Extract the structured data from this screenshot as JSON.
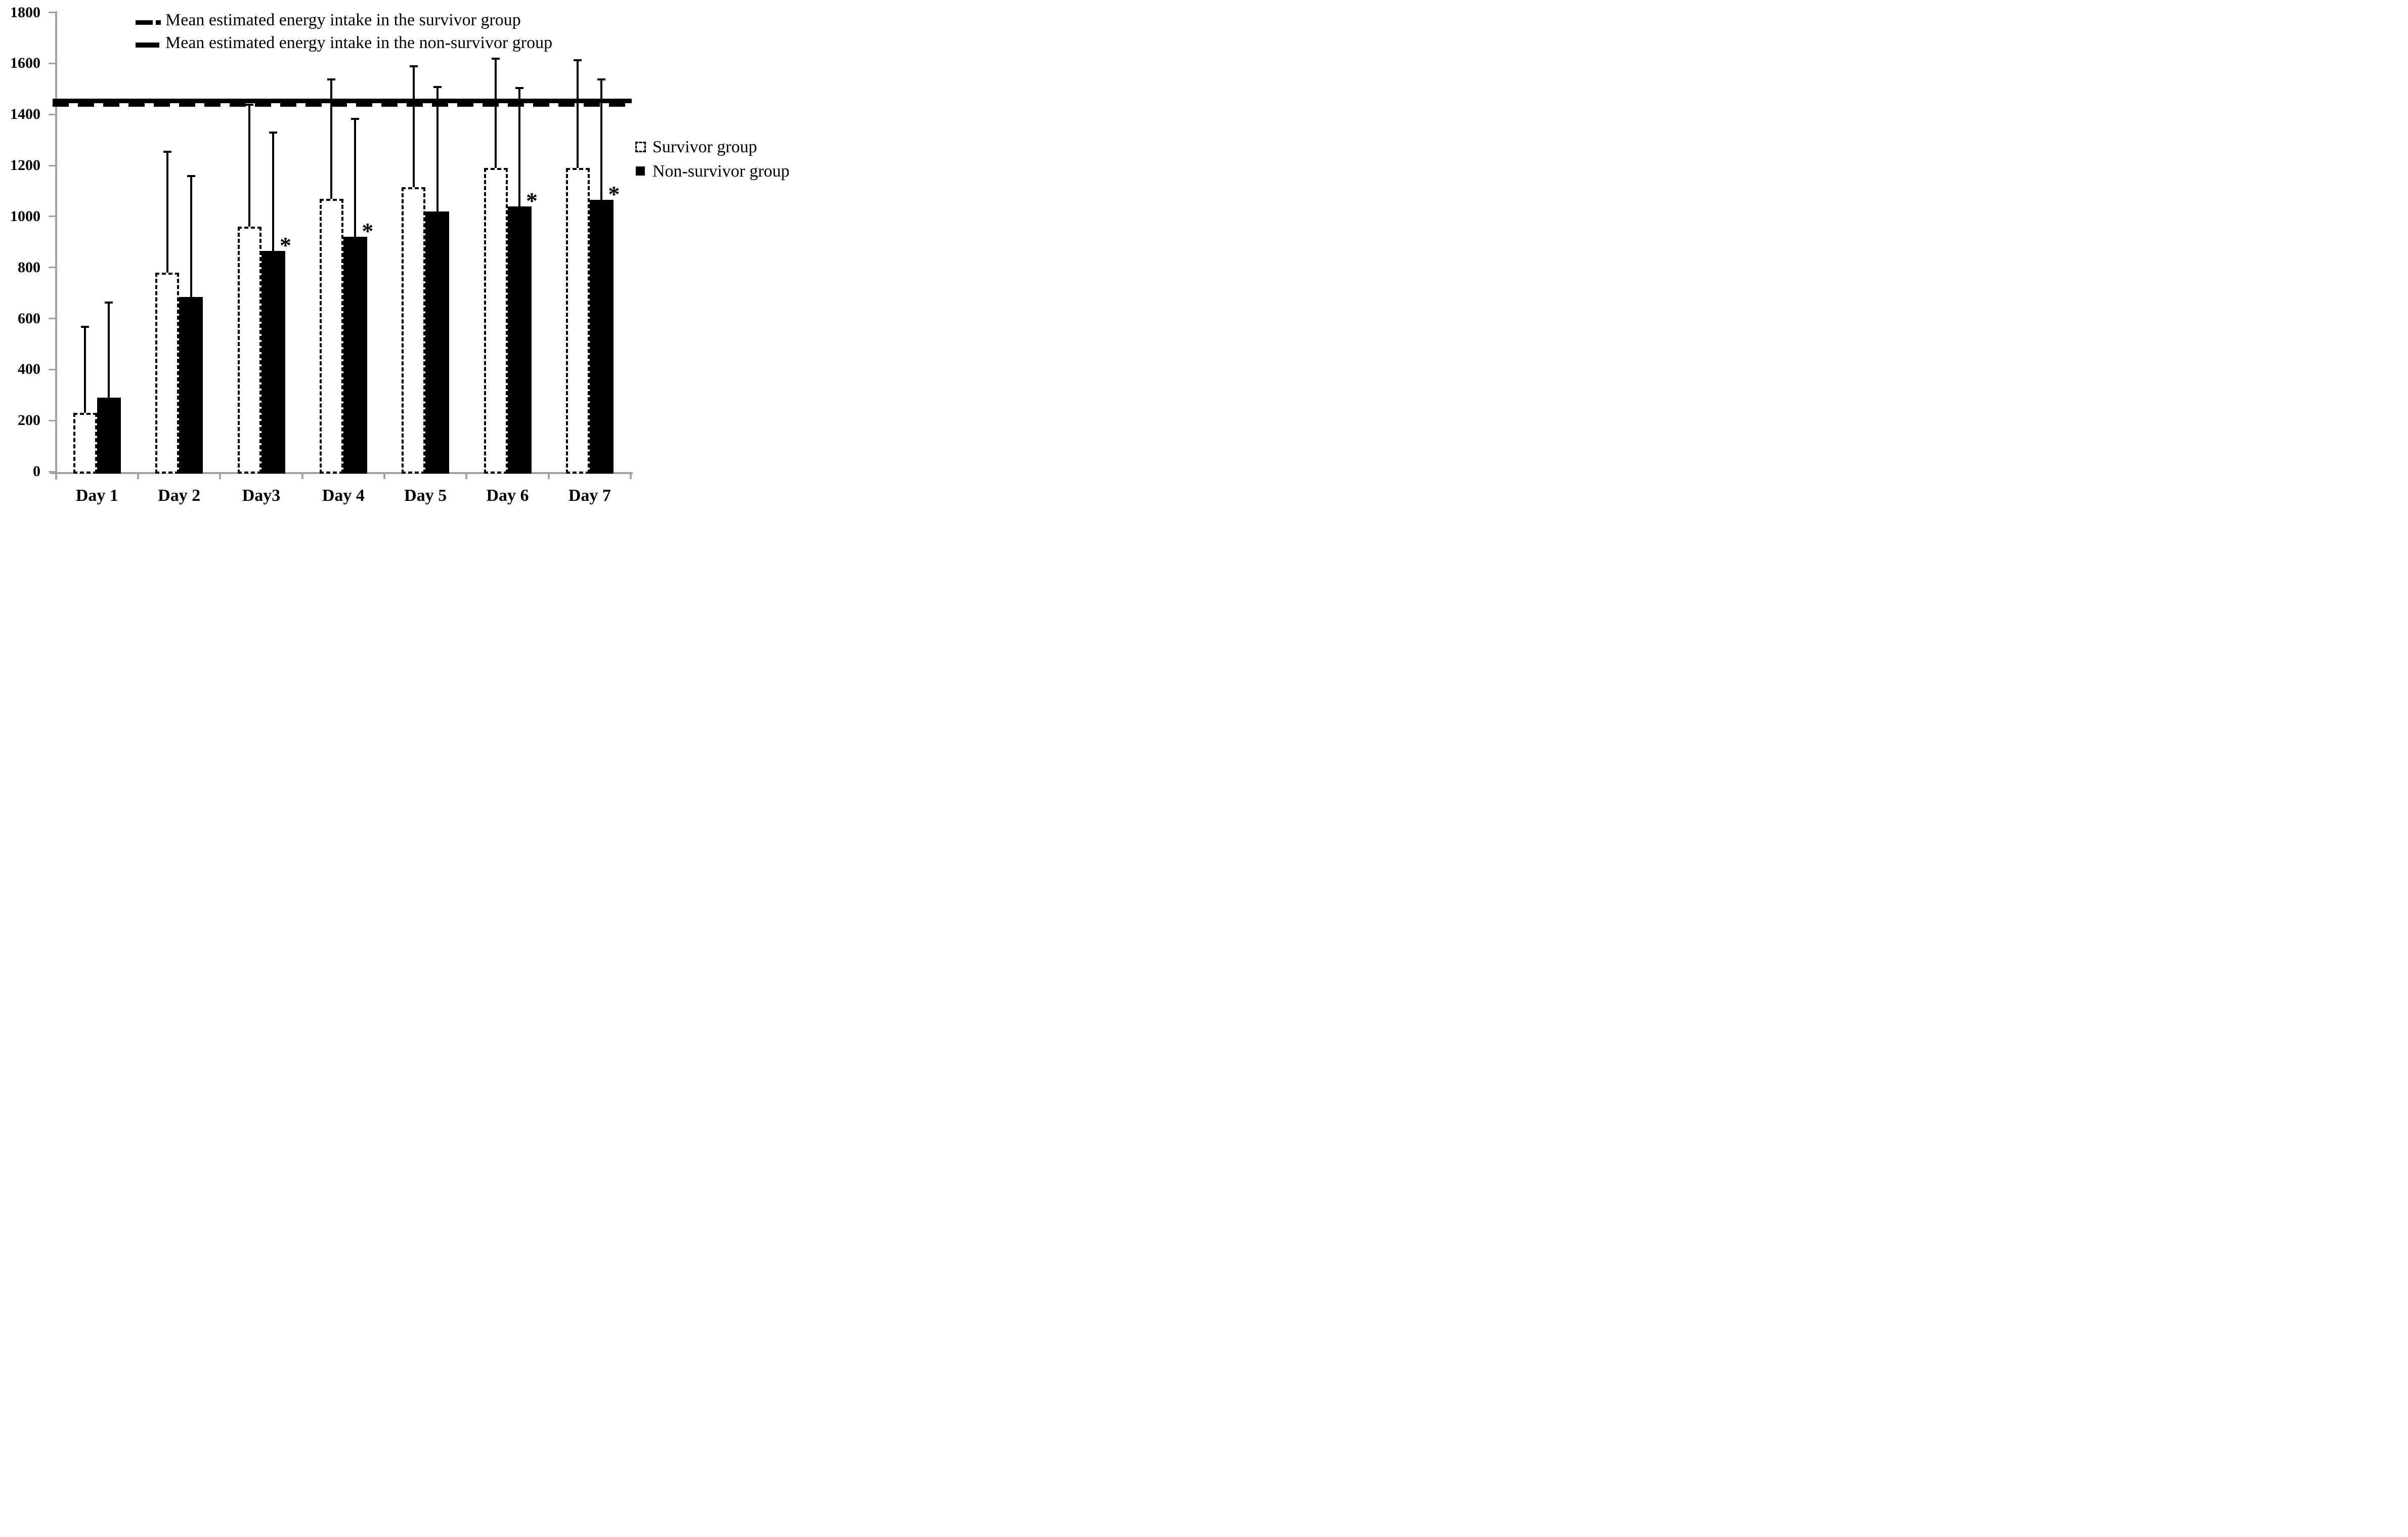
{
  "top_legend": {
    "items": [
      {
        "symbol": "thick-dashed-line",
        "label": "Mean estimated energy intake in the survivor group"
      },
      {
        "symbol": "thick-solid-line",
        "label": "Mean estimated energy intake in the non-survivor group"
      }
    ]
  },
  "side_legend": {
    "items": [
      {
        "symbol": "dashed-outline-box",
        "label": "Survivor group"
      },
      {
        "symbol": "solid-black-box",
        "label": "Non-survivor group"
      }
    ]
  },
  "chart_data": {
    "type": "bar",
    "title": "",
    "xlabel": "",
    "ylabel": "",
    "categories": [
      "Day 1",
      "Day 2",
      "Day3",
      "Day 4",
      "Day 5",
      "Day 6",
      "Day 7"
    ],
    "y_ticks": [
      0,
      200,
      400,
      600,
      800,
      1000,
      1200,
      1400,
      1600,
      1800
    ],
    "ylim": [
      0,
      1800
    ],
    "grid": false,
    "legend_position": "right",
    "series": [
      {
        "name": "Survivor group",
        "style": "white-fill-dashed-outline",
        "values": [
          230,
          780,
          960,
          1070,
          1115,
          1190,
          1190
        ],
        "error_top": [
          570,
          1255,
          1440,
          1540,
          1590,
          1620,
          1615
        ],
        "significance_asterisk": [
          false,
          false,
          false,
          false,
          false,
          false,
          false
        ]
      },
      {
        "name": "Non-survivor group",
        "style": "solid-black-fill",
        "values": [
          290,
          685,
          865,
          920,
          1020,
          1040,
          1065
        ],
        "error_top": [
          665,
          1160,
          1330,
          1385,
          1510,
          1505,
          1540
        ],
        "significance_asterisk": [
          false,
          false,
          true,
          true,
          false,
          true,
          true
        ]
      }
    ],
    "reference_lines": [
      {
        "label": "Mean estimated energy intake in the survivor group",
        "value": 1440,
        "style": "dashed"
      },
      {
        "label": "Mean estimated energy intake in the non-survivor group",
        "value": 1452,
        "style": "solid"
      }
    ],
    "annotations": {
      "asterisk_glyph": "*"
    },
    "colors": {
      "bars": "#000000",
      "axis": "#a3a3a3",
      "background": "#ffffff"
    }
  }
}
